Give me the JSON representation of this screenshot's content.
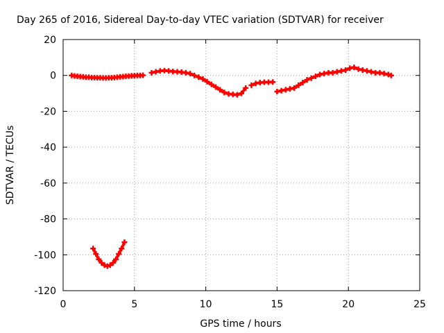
{
  "chart_data": {
    "type": "scatter",
    "title": "Day 265 of 2016, Sidereal Day-to-day VTEC variation (SDTVAR) for receiver",
    "xlabel": "GPS time / hours",
    "ylabel": "SDTVAR / TECUs",
    "xlim": [
      0,
      25
    ],
    "ylim": [
      -120,
      20
    ],
    "xticks": [
      0,
      5,
      10,
      15,
      20,
      25
    ],
    "yticks": [
      -120,
      -100,
      -80,
      -60,
      -40,
      -20,
      0,
      20
    ],
    "grid": true,
    "marker": "plus",
    "color": "#ff0000",
    "series": [
      {
        "x": [
          0.6,
          0.8,
          1.0,
          1.2,
          1.4,
          1.6,
          1.8,
          2.0,
          2.2,
          2.4,
          2.6,
          2.8,
          3.0,
          3.2,
          3.4,
          3.6,
          3.8,
          4.0,
          4.2,
          4.4,
          4.6,
          4.8,
          5.0,
          5.2,
          5.4,
          5.6
        ],
        "y": [
          0,
          -0.3,
          -0.5,
          -0.7,
          -0.8,
          -1.0,
          -1.0,
          -1.2,
          -1.2,
          -1.3,
          -1.3,
          -1.4,
          -1.4,
          -1.3,
          -1.3,
          -1.2,
          -1.0,
          -0.8,
          -0.7,
          -0.5,
          -0.4,
          -0.2,
          -0.1,
          0,
          0,
          0.1
        ]
      },
      {
        "x": [
          6.2,
          6.5,
          6.8,
          7.1,
          7.4,
          7.7,
          8.0,
          8.3,
          8.6,
          8.9,
          9.2,
          9.5,
          9.8,
          10.1,
          10.4,
          10.7,
          11.0,
          11.3,
          11.6,
          11.9,
          12.2,
          12.5,
          12.8
        ],
        "y": [
          1.5,
          2.0,
          2.5,
          2.7,
          2.5,
          2.2,
          2.0,
          1.8,
          1.5,
          1.0,
          0,
          -1.0,
          -2.0,
          -3.5,
          -5.0,
          -6.5,
          -8.0,
          -9.5,
          -10.3,
          -10.6,
          -10.8,
          -10.0,
          -7.0
        ]
      },
      {
        "x": [
          13.2,
          13.5,
          13.8,
          14.1,
          14.4,
          14.7
        ],
        "y": [
          -5.5,
          -4.5,
          -4.0,
          -3.8,
          -3.8,
          -3.7
        ]
      },
      {
        "x": [
          15.0,
          15.3,
          15.6,
          15.9,
          16.2,
          16.5,
          16.8,
          17.1,
          17.4,
          17.7,
          18.0,
          18.3,
          18.6,
          18.9,
          19.2,
          19.5,
          19.8,
          20.1,
          20.4,
          20.7,
          21.0,
          21.3,
          21.6,
          21.9,
          22.2,
          22.5,
          22.8,
          23.0
        ],
        "y": [
          -9.0,
          -8.5,
          -8.0,
          -7.5,
          -7.0,
          -5.5,
          -4.0,
          -2.5,
          -1.5,
          -0.5,
          0.5,
          1.0,
          1.5,
          1.5,
          2.0,
          2.5,
          3.0,
          4.0,
          4.5,
          3.5,
          3.0,
          2.5,
          2.0,
          1.5,
          1.5,
          1.0,
          0.5,
          0
        ]
      },
      {
        "x": [
          2.1,
          2.3,
          2.5,
          2.7,
          2.9,
          3.1,
          3.3,
          3.5,
          3.7,
          3.9,
          4.1,
          4.3
        ],
        "y": [
          -96.5,
          -99.5,
          -102.5,
          -104.5,
          -105.8,
          -106.3,
          -105.8,
          -104.5,
          -102.5,
          -99.5,
          -96.5,
          -93.0
        ]
      }
    ]
  }
}
